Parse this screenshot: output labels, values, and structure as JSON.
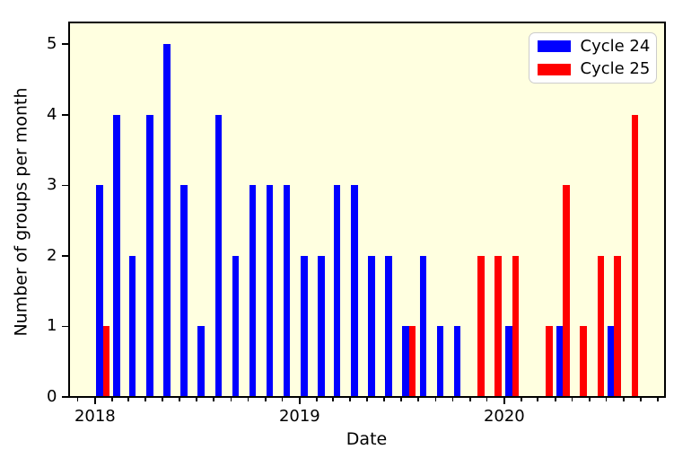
{
  "chart_data": {
    "type": "bar",
    "title": "",
    "xlabel": "Date",
    "ylabel": "Number of groups per month",
    "plot_background": "#ffffe0",
    "figure_background": "#ffffff",
    "axis_color": "#000000",
    "ylim": [
      0,
      5.31
    ],
    "yticks": [
      "0",
      "1",
      "2",
      "3",
      "4",
      "5"
    ],
    "x_range": {
      "start": "2017-11-15",
      "end": "2020-10-13"
    },
    "x_major_ticks": [
      {
        "label": "2018",
        "date": "2018-01-01"
      },
      {
        "label": "2019",
        "date": "2019-01-01"
      },
      {
        "label": "2020",
        "date": "2020-01-01"
      }
    ],
    "x_minor_tick_interval": "month",
    "grid": false,
    "legend": {
      "position": "upper right",
      "entries": [
        {
          "label": "Cycle 24",
          "color": "#0000ff"
        },
        {
          "label": "Cycle 25",
          "color": "#ff0000"
        }
      ]
    },
    "series": [
      {
        "name": "Cycle 24",
        "color": "#0000ff",
        "data": [
          {
            "month": "2018-01",
            "value": 3
          },
          {
            "month": "2018-02",
            "value": 4
          },
          {
            "month": "2018-03",
            "value": 2
          },
          {
            "month": "2018-04",
            "value": 4
          },
          {
            "month": "2018-05",
            "value": 5
          },
          {
            "month": "2018-06",
            "value": 3
          },
          {
            "month": "2018-07",
            "value": 1
          },
          {
            "month": "2018-08",
            "value": 4
          },
          {
            "month": "2018-09",
            "value": 2
          },
          {
            "month": "2018-10",
            "value": 3
          },
          {
            "month": "2018-11",
            "value": 3
          },
          {
            "month": "2018-12",
            "value": 3
          },
          {
            "month": "2019-01",
            "value": 2
          },
          {
            "month": "2019-02",
            "value": 2
          },
          {
            "month": "2019-03",
            "value": 3
          },
          {
            "month": "2019-04",
            "value": 3
          },
          {
            "month": "2019-05",
            "value": 2
          },
          {
            "month": "2019-06",
            "value": 2
          },
          {
            "month": "2019-07",
            "value": 1
          },
          {
            "month": "2019-08",
            "value": 2
          },
          {
            "month": "2019-09",
            "value": 1
          },
          {
            "month": "2019-10",
            "value": 1
          },
          {
            "month": "2020-01",
            "value": 1
          },
          {
            "month": "2020-04",
            "value": 1
          },
          {
            "month": "2020-07",
            "value": 1
          }
        ]
      },
      {
        "name": "Cycle 25",
        "color": "#ff0000",
        "data": [
          {
            "month": "2018-01",
            "value": 1
          },
          {
            "month": "2019-07",
            "value": 1
          },
          {
            "month": "2019-11",
            "value": 2
          },
          {
            "month": "2019-12",
            "value": 2
          },
          {
            "month": "2020-01",
            "value": 2
          },
          {
            "month": "2020-03",
            "value": 1
          },
          {
            "month": "2020-04",
            "value": 3
          },
          {
            "month": "2020-05",
            "value": 1
          },
          {
            "month": "2020-06",
            "value": 2
          },
          {
            "month": "2020-07",
            "value": 2
          },
          {
            "month": "2020-08",
            "value": 4
          }
        ]
      }
    ]
  }
}
